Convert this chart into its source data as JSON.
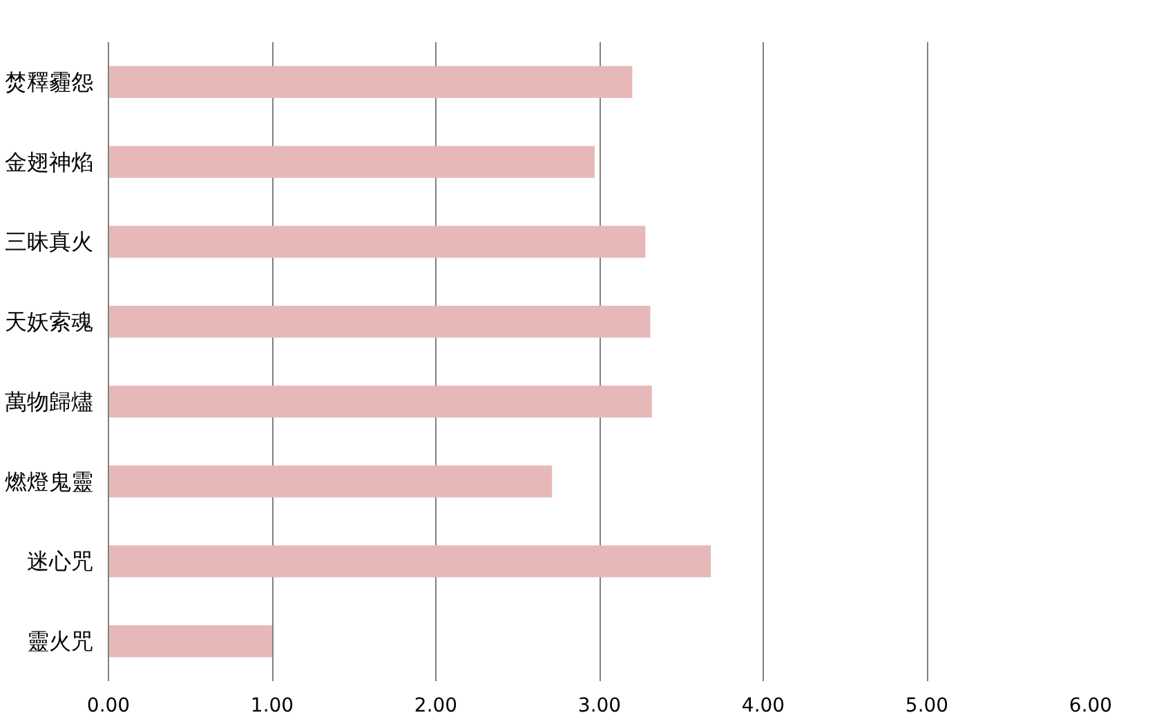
{
  "chart_data": {
    "type": "bar",
    "orientation": "horizontal",
    "categories": [
      "焚釋霾怨",
      "金翅神焰",
      "三昧真火",
      "天妖索魂",
      "萬物歸燼",
      "燃燈鬼靈",
      "迷心咒",
      "靈火咒"
    ],
    "values": [
      3.2,
      2.97,
      3.28,
      3.31,
      3.32,
      2.71,
      3.68,
      1.0
    ],
    "color": "#e6b9b8",
    "xlim": [
      0,
      6
    ],
    "xticks": [
      {
        "value": 0,
        "label": "0.00"
      },
      {
        "value": 1,
        "label": "1.00"
      },
      {
        "value": 2,
        "label": "2.00"
      },
      {
        "value": 3,
        "label": "3.00"
      },
      {
        "value": 4,
        "label": "4.00"
      },
      {
        "value": 5,
        "label": "5.00"
      },
      {
        "value": 6,
        "label": "6.00"
      }
    ],
    "grid": "x"
  }
}
